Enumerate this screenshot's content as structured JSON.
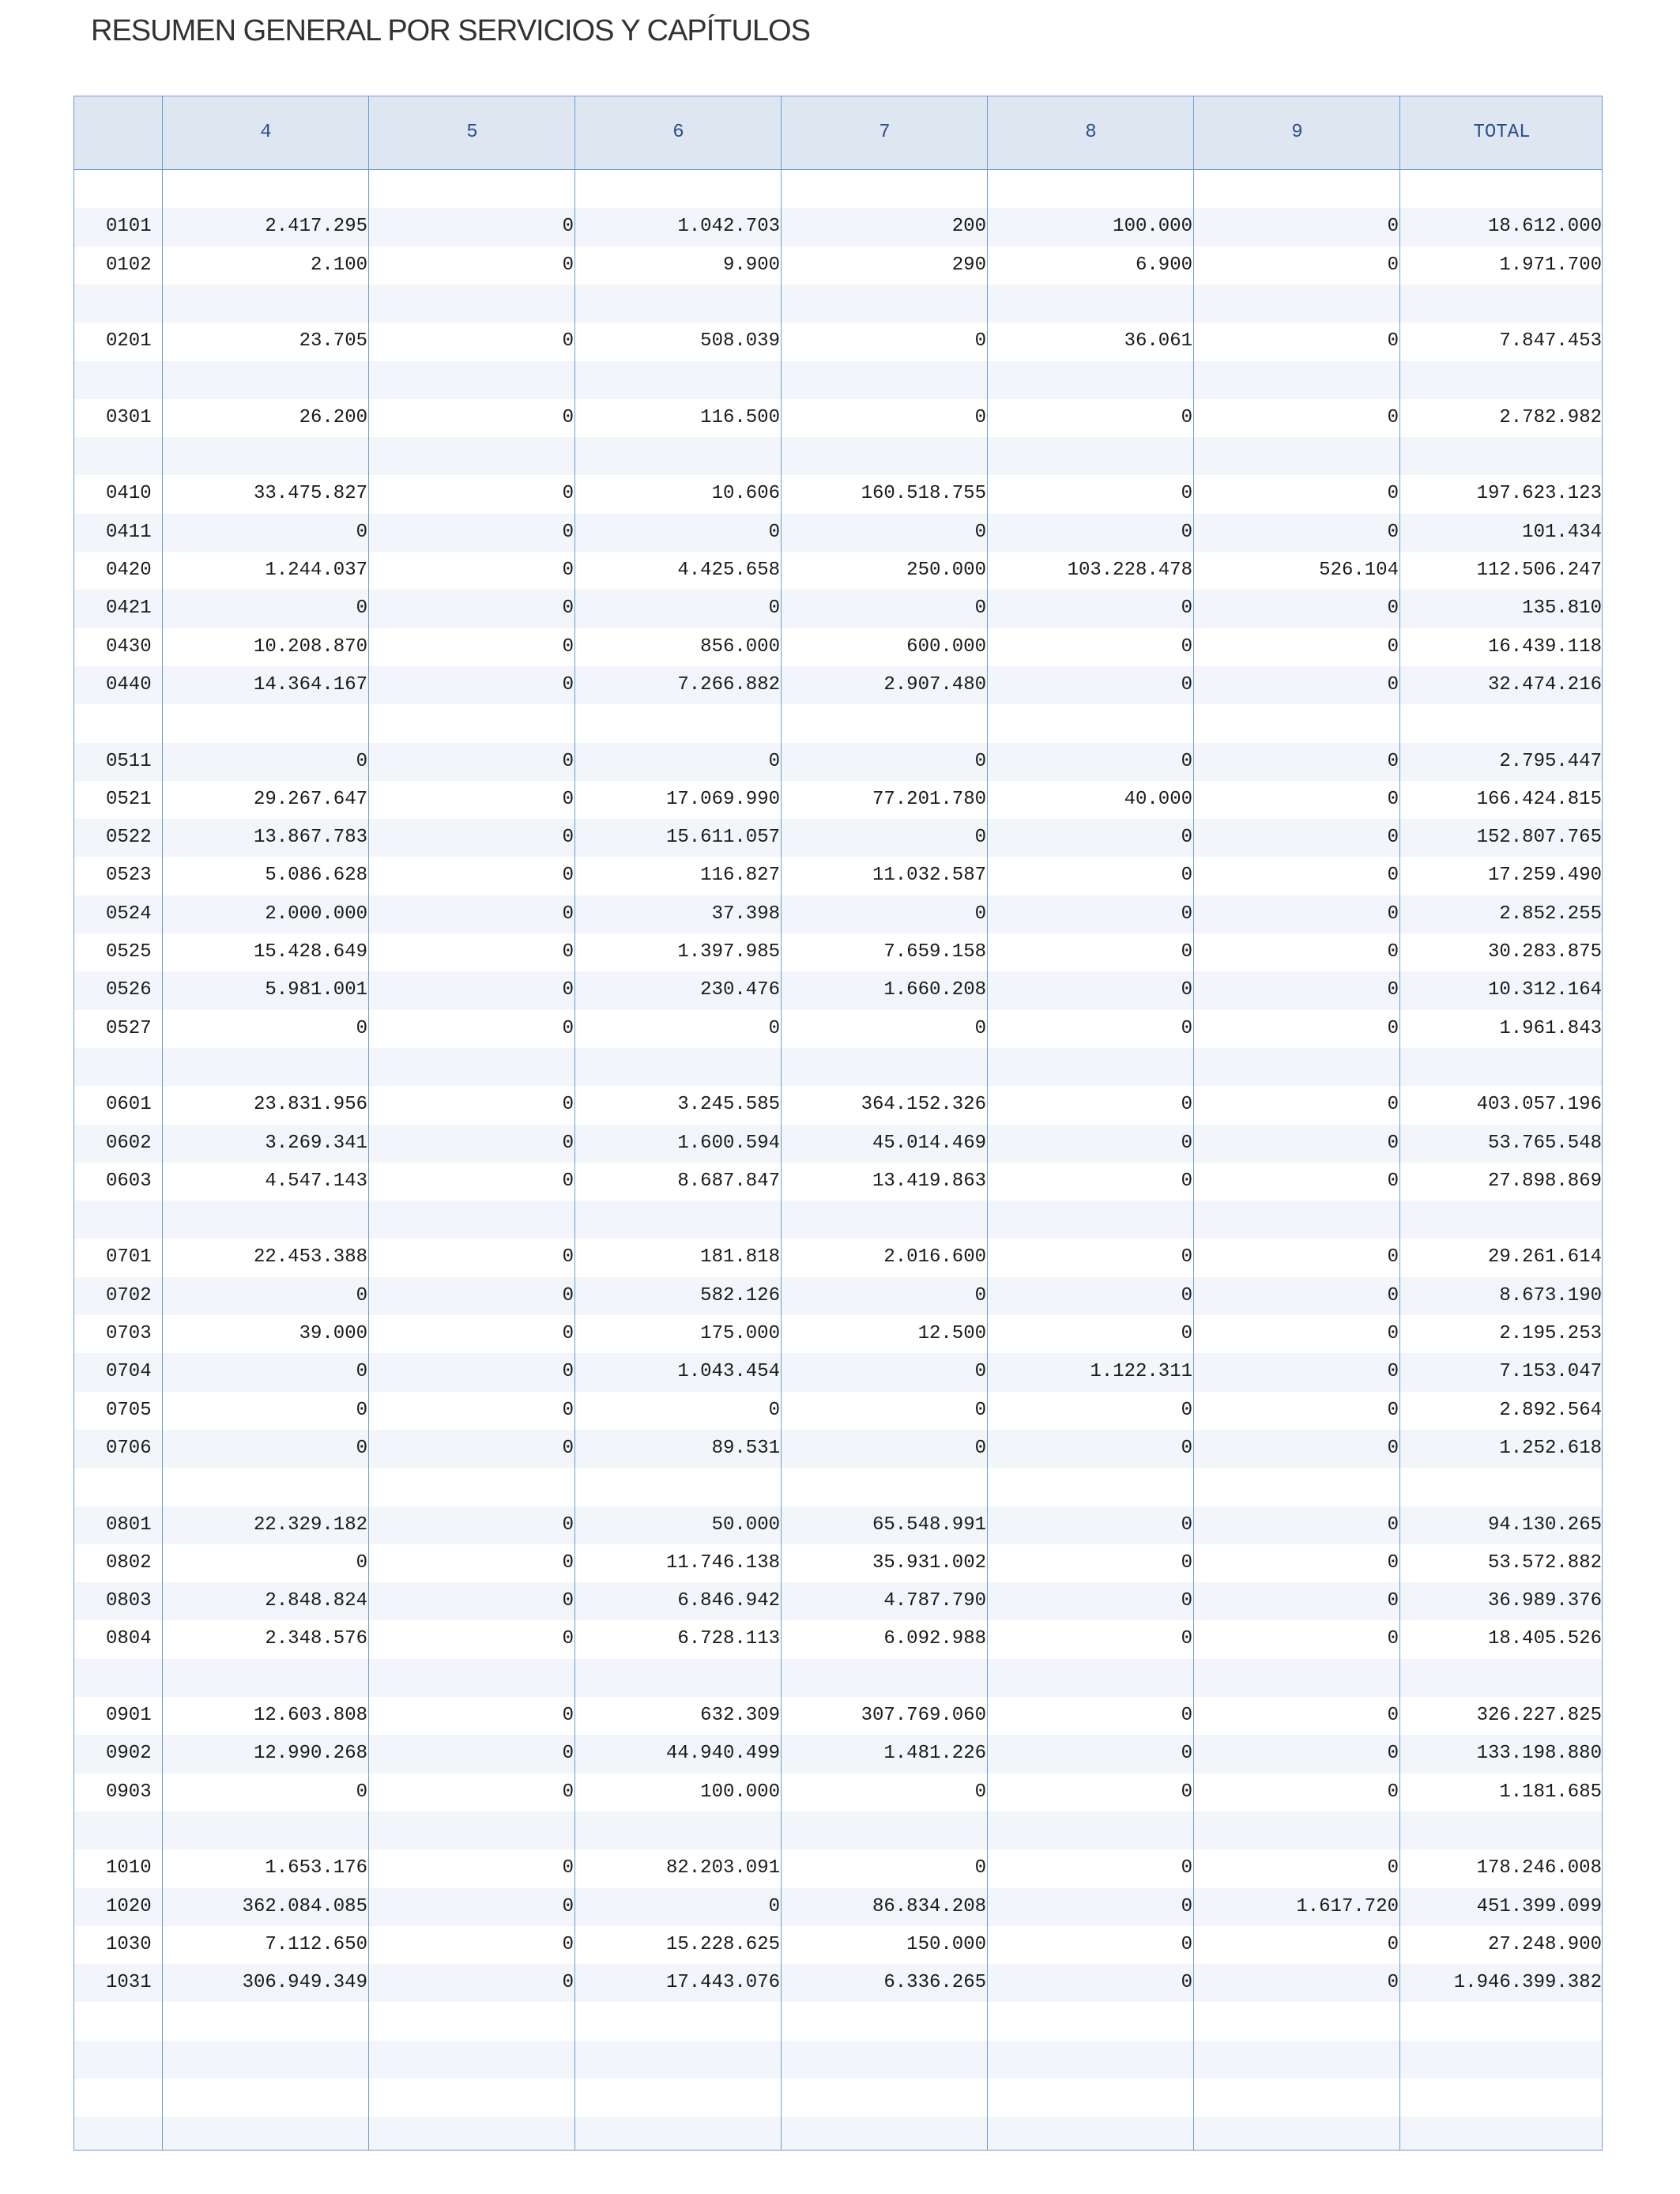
{
  "title": "RESUMEN GENERAL POR SERVICIOS Y CAPÍTULOS",
  "columns": [
    "",
    "4",
    "5",
    "6",
    "7",
    "8",
    "9",
    "TOTAL"
  ],
  "rows": [
    null,
    [
      "0101",
      "2.417.295",
      "0",
      "1.042.703",
      "200",
      "100.000",
      "0",
      "18.612.000"
    ],
    [
      "0102",
      "2.100",
      "0",
      "9.900",
      "290",
      "6.900",
      "0",
      "1.971.700"
    ],
    null,
    [
      "0201",
      "23.705",
      "0",
      "508.039",
      "0",
      "36.061",
      "0",
      "7.847.453"
    ],
    null,
    [
      "0301",
      "26.200",
      "0",
      "116.500",
      "0",
      "0",
      "0",
      "2.782.982"
    ],
    null,
    [
      "0410",
      "33.475.827",
      "0",
      "10.606",
      "160.518.755",
      "0",
      "0",
      "197.623.123"
    ],
    [
      "0411",
      "0",
      "0",
      "0",
      "0",
      "0",
      "0",
      "101.434"
    ],
    [
      "0420",
      "1.244.037",
      "0",
      "4.425.658",
      "250.000",
      "103.228.478",
      "526.104",
      "112.506.247"
    ],
    [
      "0421",
      "0",
      "0",
      "0",
      "0",
      "0",
      "0",
      "135.810"
    ],
    [
      "0430",
      "10.208.870",
      "0",
      "856.000",
      "600.000",
      "0",
      "0",
      "16.439.118"
    ],
    [
      "0440",
      "14.364.167",
      "0",
      "7.266.882",
      "2.907.480",
      "0",
      "0",
      "32.474.216"
    ],
    null,
    [
      "0511",
      "0",
      "0",
      "0",
      "0",
      "0",
      "0",
      "2.795.447"
    ],
    [
      "0521",
      "29.267.647",
      "0",
      "17.069.990",
      "77.201.780",
      "40.000",
      "0",
      "166.424.815"
    ],
    [
      "0522",
      "13.867.783",
      "0",
      "15.611.057",
      "0",
      "0",
      "0",
      "152.807.765"
    ],
    [
      "0523",
      "5.086.628",
      "0",
      "116.827",
      "11.032.587",
      "0",
      "0",
      "17.259.490"
    ],
    [
      "0524",
      "2.000.000",
      "0",
      "37.398",
      "0",
      "0",
      "0",
      "2.852.255"
    ],
    [
      "0525",
      "15.428.649",
      "0",
      "1.397.985",
      "7.659.158",
      "0",
      "0",
      "30.283.875"
    ],
    [
      "0526",
      "5.981.001",
      "0",
      "230.476",
      "1.660.208",
      "0",
      "0",
      "10.312.164"
    ],
    [
      "0527",
      "0",
      "0",
      "0",
      "0",
      "0",
      "0",
      "1.961.843"
    ],
    null,
    [
      "0601",
      "23.831.956",
      "0",
      "3.245.585",
      "364.152.326",
      "0",
      "0",
      "403.057.196"
    ],
    [
      "0602",
      "3.269.341",
      "0",
      "1.600.594",
      "45.014.469",
      "0",
      "0",
      "53.765.548"
    ],
    [
      "0603",
      "4.547.143",
      "0",
      "8.687.847",
      "13.419.863",
      "0",
      "0",
      "27.898.869"
    ],
    null,
    [
      "0701",
      "22.453.388",
      "0",
      "181.818",
      "2.016.600",
      "0",
      "0",
      "29.261.614"
    ],
    [
      "0702",
      "0",
      "0",
      "582.126",
      "0",
      "0",
      "0",
      "8.673.190"
    ],
    [
      "0703",
      "39.000",
      "0",
      "175.000",
      "12.500",
      "0",
      "0",
      "2.195.253"
    ],
    [
      "0704",
      "0",
      "0",
      "1.043.454",
      "0",
      "1.122.311",
      "0",
      "7.153.047"
    ],
    [
      "0705",
      "0",
      "0",
      "0",
      "0",
      "0",
      "0",
      "2.892.564"
    ],
    [
      "0706",
      "0",
      "0",
      "89.531",
      "0",
      "0",
      "0",
      "1.252.618"
    ],
    null,
    [
      "0801",
      "22.329.182",
      "0",
      "50.000",
      "65.548.991",
      "0",
      "0",
      "94.130.265"
    ],
    [
      "0802",
      "0",
      "0",
      "11.746.138",
      "35.931.002",
      "0",
      "0",
      "53.572.882"
    ],
    [
      "0803",
      "2.848.824",
      "0",
      "6.846.942",
      "4.787.790",
      "0",
      "0",
      "36.989.376"
    ],
    [
      "0804",
      "2.348.576",
      "0",
      "6.728.113",
      "6.092.988",
      "0",
      "0",
      "18.405.526"
    ],
    null,
    [
      "0901",
      "12.603.808",
      "0",
      "632.309",
      "307.769.060",
      "0",
      "0",
      "326.227.825"
    ],
    [
      "0902",
      "12.990.268",
      "0",
      "44.940.499",
      "1.481.226",
      "0",
      "0",
      "133.198.880"
    ],
    [
      "0903",
      "0",
      "0",
      "100.000",
      "0",
      "0",
      "0",
      "1.181.685"
    ],
    null,
    [
      "1010",
      "1.653.176",
      "0",
      "82.203.091",
      "0",
      "0",
      "0",
      "178.246.008"
    ],
    [
      "1020",
      "362.084.085",
      "0",
      "0",
      "86.834.208",
      "0",
      "1.617.720",
      "451.399.099"
    ],
    [
      "1030",
      "7.112.650",
      "0",
      "15.228.625",
      "150.000",
      "0",
      "0",
      "27.248.900"
    ],
    [
      "1031",
      "306.949.349",
      "0",
      "17.443.076",
      "6.336.265",
      "0",
      "0",
      "1.946.399.382"
    ],
    null,
    null,
    null,
    null
  ]
}
